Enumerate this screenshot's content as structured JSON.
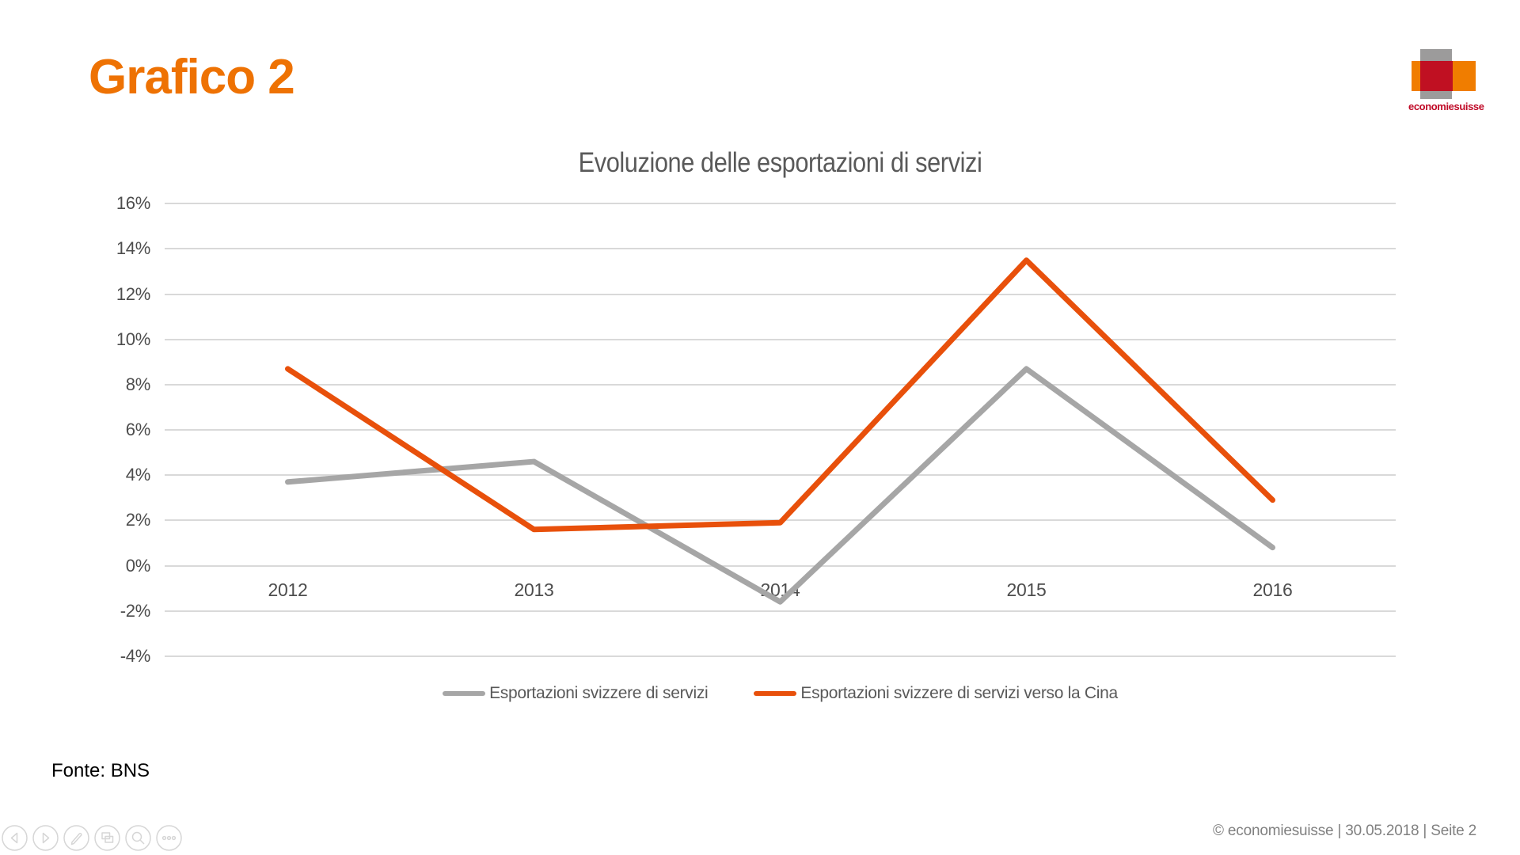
{
  "slide": {
    "title": "Grafico 2",
    "source": "Fonte: BNS",
    "footer": "© economiesuisse | 30.05.2018 | Seite 2"
  },
  "logo": {
    "wordmark": "economiesuisse",
    "gray": "#9C9B9B",
    "orange": "#F07D00",
    "red": "#C01022",
    "wordmark_color": "#C00A27"
  },
  "colors": {
    "title_orange": "#EE7203",
    "grid": "#D9D9D9",
    "axis_text": "#4D4D4D",
    "chart_text": "#595959",
    "footer_text": "#808080",
    "toolbar_stroke": "#D6D6D6"
  },
  "chart_data": {
    "type": "line",
    "title": "Evoluzione delle esportazioni di servizi",
    "categories": [
      "2012",
      "2013",
      "2014",
      "2015",
      "2016"
    ],
    "series": [
      {
        "name": "Esportazioni svizzere di servizi",
        "color": "#A6A6A6",
        "values": [
          3.7,
          4.6,
          -1.6,
          8.7,
          0.8
        ]
      },
      {
        "name": "Esportazioni svizzere di servizi verso la Cina",
        "color": "#E8500B",
        "values": [
          8.7,
          1.6,
          1.9,
          13.5,
          2.9
        ]
      }
    ],
    "xlabel": "",
    "ylabel": "",
    "ylim": [
      -4,
      16
    ],
    "yticks": [
      16,
      14,
      12,
      10,
      8,
      6,
      4,
      2,
      0,
      -2,
      -4
    ],
    "ytick_suffix": "%",
    "grid": true,
    "legend_position": "bottom"
  },
  "toolbar": {
    "buttons": [
      {
        "name": "previous-slide",
        "icon": "arrow-left-icon"
      },
      {
        "name": "next-slide",
        "icon": "arrow-right-icon"
      },
      {
        "name": "pen",
        "icon": "pen-icon"
      },
      {
        "name": "all-slides",
        "icon": "slides-icon"
      },
      {
        "name": "zoom",
        "icon": "magnifier-icon"
      },
      {
        "name": "more-options",
        "icon": "ellipsis-icon"
      }
    ]
  }
}
